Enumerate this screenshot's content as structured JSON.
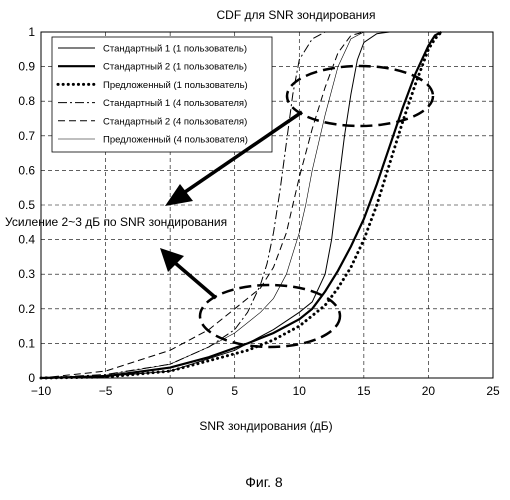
{
  "chart_data": {
    "type": "line",
    "title": "CDF для SNR зондирования",
    "xlabel": "SNR зондирования (дБ)",
    "ylabel": "",
    "xlim": [
      -10,
      25
    ],
    "ylim": [
      0,
      1
    ],
    "xticks": [
      "−10",
      "−5",
      "0",
      "5",
      "10",
      "15",
      "20",
      "25"
    ],
    "yticks": [
      "0",
      "0.1",
      "0.2",
      "0.3",
      "0.4",
      "0.5",
      "0.6",
      "0.7",
      "0.8",
      "0.9",
      "1"
    ],
    "grid": "dashed",
    "legend_position": "top-left",
    "series": [
      {
        "name": "Стандартный 1 (1 пользователь)",
        "style": "thin-solid",
        "x": [
          -10,
          -5,
          0,
          5,
          8,
          10,
          11,
          12,
          12.5,
          13,
          13.5,
          14,
          14.5,
          15,
          16,
          17
        ],
        "y": [
          0,
          0.005,
          0.02,
          0.08,
          0.14,
          0.19,
          0.22,
          0.3,
          0.4,
          0.55,
          0.7,
          0.82,
          0.92,
          0.97,
          0.995,
          1
        ]
      },
      {
        "name": "Стандартный 2 (1 пользователь)",
        "style": "thick-solid",
        "x": [
          -10,
          -5,
          0,
          3,
          6,
          8,
          10,
          11,
          12,
          13,
          14,
          15,
          16,
          17,
          18,
          19,
          20,
          20.5,
          21
        ],
        "y": [
          0,
          0.005,
          0.03,
          0.06,
          0.1,
          0.13,
          0.17,
          0.2,
          0.25,
          0.31,
          0.38,
          0.46,
          0.56,
          0.67,
          0.78,
          0.88,
          0.96,
          0.99,
          1
        ]
      },
      {
        "name": "Предложенный  (1 пользователь)",
        "style": "dotted",
        "x": [
          -10,
          -5,
          0,
          3,
          6,
          8,
          10,
          11,
          12,
          13,
          14,
          15,
          16,
          17,
          18,
          19,
          20,
          20.5,
          21
        ],
        "y": [
          0,
          0.003,
          0.02,
          0.05,
          0.08,
          0.11,
          0.15,
          0.18,
          0.21,
          0.26,
          0.32,
          0.4,
          0.5,
          0.62,
          0.74,
          0.85,
          0.95,
          0.98,
          1
        ]
      },
      {
        "name": "Стандартный 1 (4 пользователя)",
        "style": "dash-dot",
        "x": [
          -10,
          -5,
          0,
          3,
          5,
          6,
          7,
          7.5,
          8,
          8.5,
          9,
          9.5,
          10,
          11,
          12,
          13
        ],
        "y": [
          0,
          0.01,
          0.04,
          0.09,
          0.14,
          0.19,
          0.27,
          0.33,
          0.42,
          0.54,
          0.68,
          0.82,
          0.92,
          0.98,
          1,
          1
        ]
      },
      {
        "name": "Стандартный 2 (4 пользователя)",
        "style": "dashed",
        "x": [
          -10,
          -5,
          0,
          3,
          5,
          7,
          8,
          9,
          9.5,
          10,
          11,
          12,
          13,
          14,
          15
        ],
        "y": [
          0,
          0.02,
          0.08,
          0.14,
          0.2,
          0.26,
          0.32,
          0.42,
          0.5,
          0.58,
          0.72,
          0.84,
          0.94,
          0.99,
          1
        ]
      },
      {
        "name": "Предложенный (4 пользователя)",
        "style": "hair-solid",
        "x": [
          -10,
          -5,
          0,
          3,
          5,
          7,
          8,
          9,
          10,
          10.5,
          11,
          12,
          13,
          14,
          15
        ],
        "y": [
          0,
          0.008,
          0.04,
          0.09,
          0.13,
          0.19,
          0.23,
          0.3,
          0.42,
          0.5,
          0.6,
          0.76,
          0.9,
          0.98,
          1
        ]
      }
    ],
    "annotation": "Усиление 2~3 дБ по SNR зондирования"
  },
  "caption": "Фиг. 8"
}
